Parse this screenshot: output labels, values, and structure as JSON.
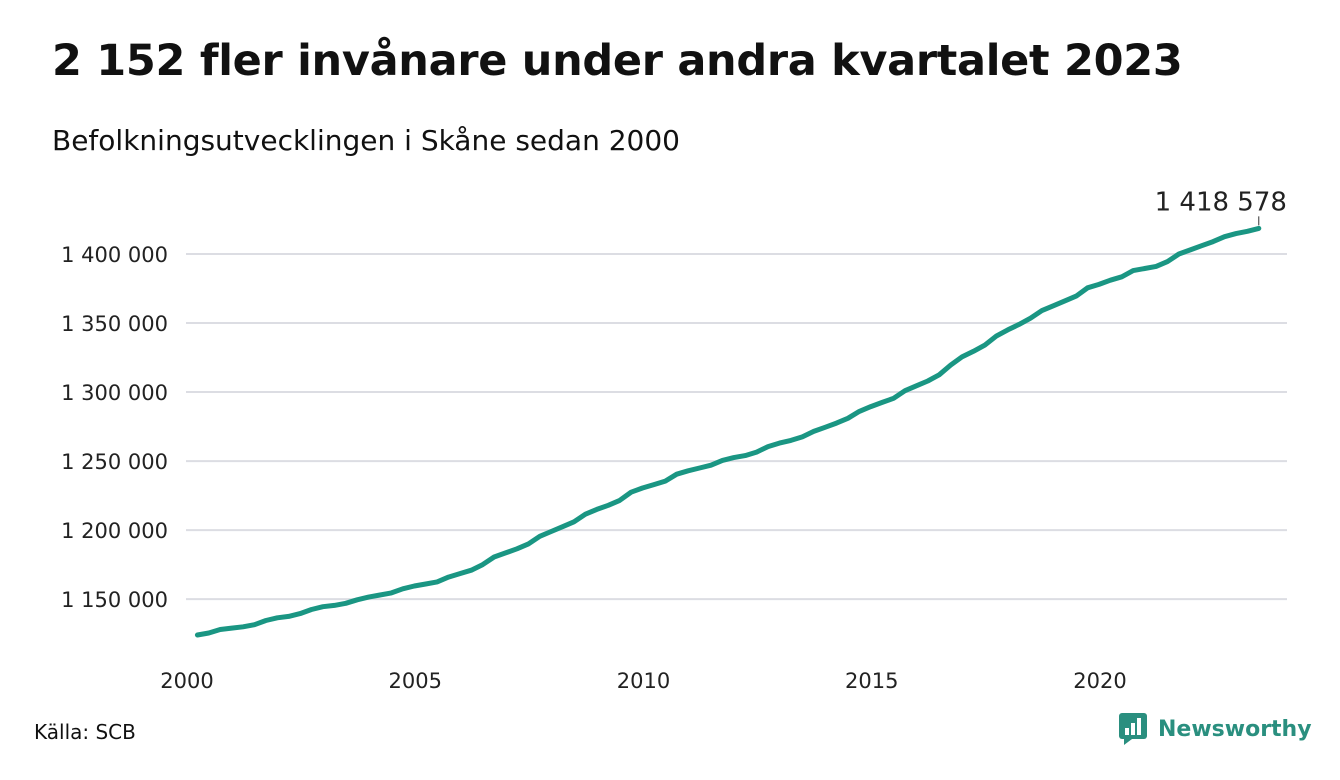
{
  "title": "2 152 fler invånare under andra kvartalet 2023",
  "subtitle": "Befolkningsutvecklingen i Skåne sedan 2000",
  "source": "Källa: SCB",
  "brand": {
    "name": "Newsworthy",
    "icon": "newsworthy-logo-icon",
    "color": "#2a8f7f"
  },
  "colors": {
    "line": "#1a9683",
    "grid": "#dcdde3"
  },
  "chart_data": {
    "type": "line",
    "x_ticks": [
      "2000",
      "2005",
      "2010",
      "2015",
      "2020"
    ],
    "y_ticks": [
      "1 150 000",
      "1 200 000",
      "1 250 000",
      "1 300 000",
      "1 350 000",
      "1 400 000"
    ],
    "y_tick_values": [
      1150000,
      1200000,
      1250000,
      1300000,
      1350000,
      1400000
    ],
    "xlim": [
      2000,
      2024
    ],
    "ylim": [
      1124000,
      1425000
    ],
    "grid": "horizontal",
    "end_label": "1 418 578",
    "series": [
      {
        "values": [
          [
            2000.25,
            1124000
          ],
          [
            2000.5,
            1125500
          ],
          [
            2000.75,
            1128000
          ],
          [
            2001.0,
            1129000
          ],
          [
            2001.25,
            1130000
          ],
          [
            2001.5,
            1131500
          ],
          [
            2001.75,
            1134500
          ],
          [
            2002.0,
            1136500
          ],
          [
            2002.25,
            1137500
          ],
          [
            2002.5,
            1139500
          ],
          [
            2002.75,
            1142500
          ],
          [
            2003.0,
            1144500
          ],
          [
            2003.25,
            1145500
          ],
          [
            2003.5,
            1147000
          ],
          [
            2003.75,
            1149500
          ],
          [
            2004.0,
            1151500
          ],
          [
            2004.25,
            1153000
          ],
          [
            2004.5,
            1154500
          ],
          [
            2004.75,
            1157500
          ],
          [
            2005.0,
            1159500
          ],
          [
            2005.25,
            1161000
          ],
          [
            2005.5,
            1162500
          ],
          [
            2005.75,
            1166000
          ],
          [
            2006.0,
            1168500
          ],
          [
            2006.25,
            1171000
          ],
          [
            2006.5,
            1175000
          ],
          [
            2006.75,
            1180500
          ],
          [
            2007.0,
            1183500
          ],
          [
            2007.25,
            1186500
          ],
          [
            2007.5,
            1190000
          ],
          [
            2007.75,
            1195500
          ],
          [
            2008.0,
            1199000
          ],
          [
            2008.25,
            1202500
          ],
          [
            2008.5,
            1206000
          ],
          [
            2008.75,
            1211500
          ],
          [
            2009.0,
            1215000
          ],
          [
            2009.25,
            1218000
          ],
          [
            2009.5,
            1221500
          ],
          [
            2009.75,
            1227500
          ],
          [
            2010.0,
            1230500
          ],
          [
            2010.25,
            1233000
          ],
          [
            2010.5,
            1235500
          ],
          [
            2010.75,
            1240500
          ],
          [
            2011.0,
            1243000
          ],
          [
            2011.25,
            1245000
          ],
          [
            2011.5,
            1247000
          ],
          [
            2011.75,
            1250500
          ],
          [
            2012.0,
            1252500
          ],
          [
            2012.25,
            1254000
          ],
          [
            2012.5,
            1256500
          ],
          [
            2012.75,
            1260500
          ],
          [
            2013.0,
            1263000
          ],
          [
            2013.25,
            1265000
          ],
          [
            2013.5,
            1267500
          ],
          [
            2013.75,
            1271500
          ],
          [
            2014.0,
            1274500
          ],
          [
            2014.25,
            1277500
          ],
          [
            2014.5,
            1281000
          ],
          [
            2014.75,
            1286000
          ],
          [
            2015.0,
            1289500
          ],
          [
            2015.25,
            1292500
          ],
          [
            2015.5,
            1295500
          ],
          [
            2015.75,
            1301000
          ],
          [
            2016.0,
            1304500
          ],
          [
            2016.25,
            1308000
          ],
          [
            2016.5,
            1312500
          ],
          [
            2016.75,
            1319500
          ],
          [
            2017.0,
            1325500
          ],
          [
            2017.25,
            1329500
          ],
          [
            2017.5,
            1334000
          ],
          [
            2017.75,
            1340500
          ],
          [
            2018.0,
            1345000
          ],
          [
            2018.25,
            1349000
          ],
          [
            2018.5,
            1353500
          ],
          [
            2018.75,
            1359000
          ],
          [
            2019.0,
            1362500
          ],
          [
            2019.25,
            1366000
          ],
          [
            2019.5,
            1369500
          ],
          [
            2019.75,
            1375500
          ],
          [
            2020.0,
            1378000
          ],
          [
            2020.25,
            1381000
          ],
          [
            2020.5,
            1383500
          ],
          [
            2020.75,
            1388000
          ],
          [
            2021.0,
            1389500
          ],
          [
            2021.25,
            1391000
          ],
          [
            2021.5,
            1394500
          ],
          [
            2021.75,
            1400000
          ],
          [
            2022.0,
            1403000
          ],
          [
            2022.25,
            1406000
          ],
          [
            2022.5,
            1409000
          ],
          [
            2022.75,
            1412500
          ],
          [
            2023.0,
            1414800
          ],
          [
            2023.25,
            1416426
          ],
          [
            2023.5,
            1418578
          ]
        ]
      }
    ]
  }
}
